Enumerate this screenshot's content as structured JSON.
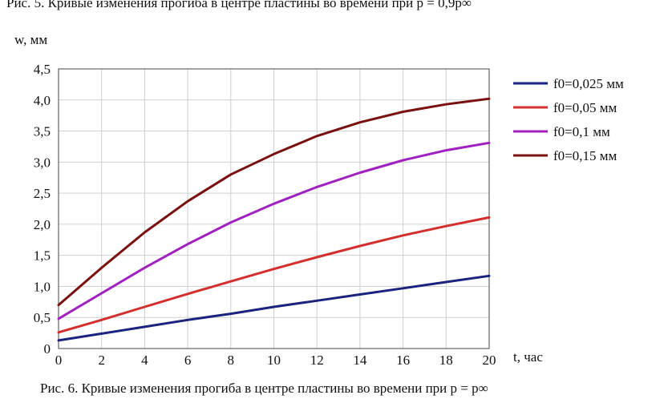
{
  "captions": {
    "top": "Рис. 5. Кривые изменения прогиба в центре пластины во времени при p = 0,9p∞",
    "bottom": "Рис. 6. Кривые изменения прогиба в центре пластины во времени при p = p∞"
  },
  "chart_data": {
    "type": "line",
    "xlabel": "t, час",
    "ylabel": "w, мм",
    "xlim": [
      0,
      20
    ],
    "ylim": [
      0,
      4.5
    ],
    "x_ticks": [
      "0",
      "2",
      "4",
      "6",
      "8",
      "10",
      "12",
      "14",
      "16",
      "18",
      "20"
    ],
    "y_ticks": [
      "0",
      "0,5",
      "1,0",
      "1,5",
      "2,0",
      "2,5",
      "3,0",
      "3,5",
      "4,0",
      "4,5"
    ],
    "grid": true,
    "legend_position": "right",
    "x": [
      0,
      2,
      4,
      6,
      8,
      10,
      12,
      14,
      16,
      18,
      20
    ],
    "series": [
      {
        "name": "f0=0,025 мм",
        "color": "#1a237e",
        "values": [
          0.13,
          0.24,
          0.35,
          0.46,
          0.56,
          0.67,
          0.77,
          0.87,
          0.97,
          1.07,
          1.17
        ]
      },
      {
        "name": "f0=0,05 мм",
        "color": "#d32f2f",
        "values": [
          0.26,
          0.46,
          0.67,
          0.88,
          1.08,
          1.28,
          1.47,
          1.65,
          1.82,
          1.97,
          2.11
        ]
      },
      {
        "name": "f0=0,1 мм",
        "color": "#a020c0",
        "values": [
          0.48,
          0.89,
          1.3,
          1.68,
          2.03,
          2.33,
          2.6,
          2.83,
          3.03,
          3.19,
          3.31
        ]
      },
      {
        "name": "f0=0,15 мм",
        "color": "#7a1010",
        "values": [
          0.7,
          1.3,
          1.87,
          2.37,
          2.8,
          3.13,
          3.42,
          3.64,
          3.81,
          3.93,
          4.02
        ]
      }
    ]
  }
}
